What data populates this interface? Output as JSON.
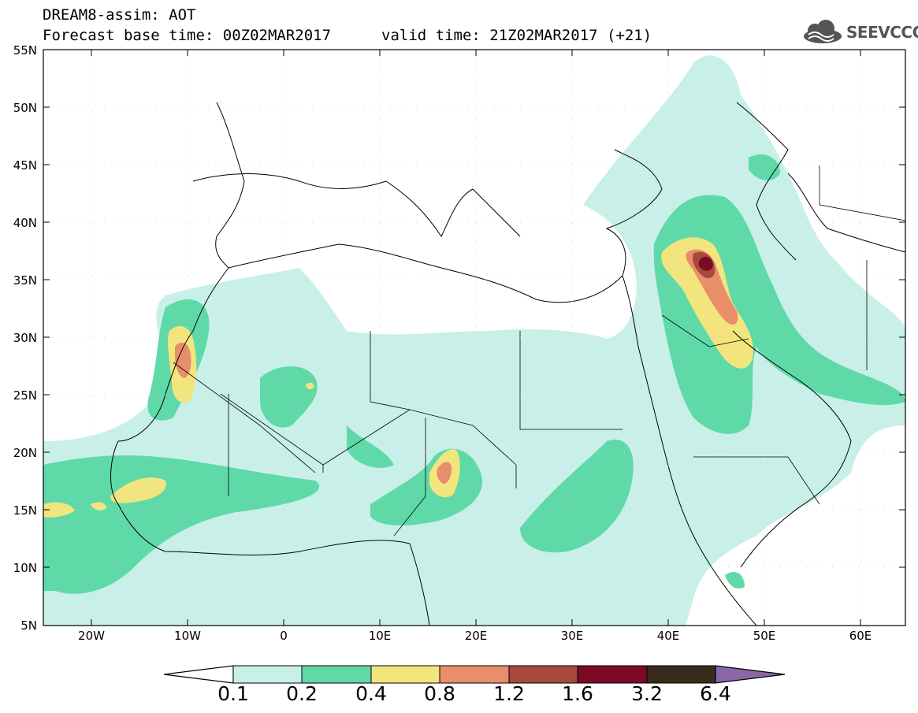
{
  "header": {
    "title": "DREAM8-assim: AOT",
    "forecast_base": "Forecast base time: 00Z02MAR2017",
    "valid_time": "valid time: 21Z02MAR2017 (+21)"
  },
  "logo": {
    "text": "SEEVCCC",
    "icon": "cloud-icon"
  },
  "axes": {
    "lat_labels": [
      "55N",
      "50N",
      "45N",
      "40N",
      "35N",
      "30N",
      "25N",
      "20N",
      "15N",
      "10N",
      "5N"
    ],
    "lon_labels": [
      "20W",
      "10W",
      "0",
      "10E",
      "20E",
      "30E",
      "40E",
      "50E",
      "60E"
    ]
  },
  "colorbar": {
    "labels": [
      "0.1",
      "0.2",
      "0.4",
      "0.8",
      "1.2",
      "1.6",
      "3.2",
      "6.4"
    ],
    "colors": [
      "#ffffff",
      "#c8f0e8",
      "#5fd9a8",
      "#f3e57e",
      "#e88e6a",
      "#a8483c",
      "#7a0a26",
      "#3b2b1c",
      "#8a67a6"
    ]
  }
}
